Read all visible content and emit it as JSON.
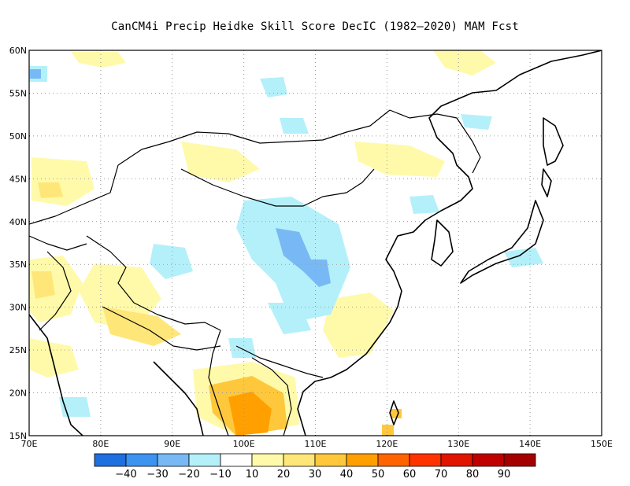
{
  "title": "CanCM4i Precip Heidke Skill Score DecIC (1982–2020) MAM Fcst",
  "map": {
    "lon_range": [
      70,
      150
    ],
    "lat_range": [
      15,
      60
    ],
    "lon_ticks": [
      "70E",
      "80E",
      "90E",
      "100E",
      "110E",
      "120E",
      "130E",
      "140E",
      "150E"
    ],
    "lat_ticks": [
      "15N",
      "20N",
      "25N",
      "30N",
      "35N",
      "40N",
      "45N",
      "50N",
      "55N",
      "60N"
    ],
    "grid": "dotted"
  },
  "colorbar": {
    "colors": [
      "#1e6fe0",
      "#3c93f0",
      "#78b9f5",
      "#b4f0fa",
      "#ffffff",
      "#fffaaa",
      "#ffe678",
      "#ffc83c",
      "#ffa000",
      "#ff6400",
      "#ff3200",
      "#e11400",
      "#c00000",
      "#a50000"
    ],
    "labels": [
      "-40",
      "-30",
      "-20",
      "-10",
      "10",
      "20",
      "30",
      "40",
      "50",
      "60",
      "70",
      "80",
      "90"
    ]
  }
}
